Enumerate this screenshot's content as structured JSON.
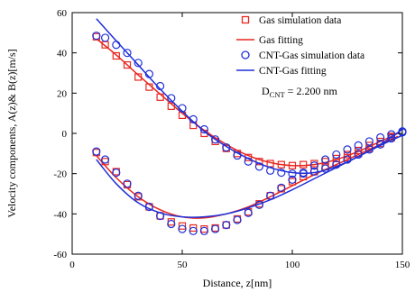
{
  "chart_data": {
    "type": "scatter",
    "xlabel": "Distance, z[nm]",
    "ylabel": "Velocity components, A(z)& B(z)[m/s]",
    "xlim": [
      0,
      150
    ],
    "ylim": [
      -60,
      60
    ],
    "xticks": [
      0,
      50,
      100,
      150
    ],
    "yticks": [
      -60,
      -40,
      -20,
      0,
      20,
      40,
      60
    ],
    "grid": false,
    "legend_position": "top-right",
    "annotation": {
      "prefix": "D",
      "subscript": "CNT",
      "suffix": " = 2.200 nm"
    },
    "colors": {
      "gas": "#e8271f",
      "cnt": "#1f2fd8"
    },
    "series": [
      {
        "name": "Gas simulation data",
        "kind": "markers",
        "marker": "square",
        "color": "#e8271f",
        "x": [
          11,
          15,
          20,
          25,
          30,
          35,
          40,
          45,
          50,
          55,
          60,
          65,
          70,
          75,
          80,
          85,
          90,
          95,
          100,
          105,
          110,
          115,
          120,
          125,
          130,
          135,
          140,
          145
        ],
        "y": [
          48,
          44,
          38.5,
          34,
          28,
          23,
          18,
          13.5,
          9,
          4,
          0,
          -4,
          -7.5,
          -10,
          -12,
          -14,
          -15,
          -15.5,
          -16,
          -15.5,
          -15,
          -14,
          -12.5,
          -10.5,
          -8.5,
          -6,
          -4,
          -1.5
        ]
      },
      {
        "name": "",
        "kind": "markers",
        "marker": "square",
        "color": "#e8271f",
        "x": [
          11,
          15,
          20,
          25,
          30,
          35,
          40,
          45,
          50,
          55,
          60,
          65,
          70,
          75,
          80,
          85,
          90,
          95,
          100,
          105,
          110,
          115,
          120,
          125,
          130,
          135,
          140,
          145
        ],
        "y": [
          -9.5,
          -14,
          -19,
          -25.5,
          -31.5,
          -36.5,
          -41,
          -44,
          -46,
          -47,
          -47.5,
          -47,
          -45.5,
          -42.5,
          -39,
          -35,
          -31,
          -27.5,
          -24,
          -21.5,
          -19,
          -16.5,
          -14.5,
          -12,
          -10,
          -7.5,
          -5,
          -2
        ]
      },
      {
        "name": "Gas fitting",
        "kind": "line",
        "color": "#e8271f",
        "x": [
          11,
          20,
          30,
          40,
          50,
          60,
          70,
          80,
          90,
          100,
          110,
          120,
          130,
          140,
          148
        ],
        "y": [
          47,
          39,
          29,
          19.5,
          10,
          1.5,
          -5.5,
          -11,
          -14.5,
          -16,
          -15.5,
          -13,
          -9,
          -4,
          0
        ]
      },
      {
        "name": "",
        "kind": "line",
        "color": "#e8271f",
        "x": [
          11,
          20,
          30,
          40,
          50,
          60,
          70,
          80,
          90,
          100,
          110,
          120,
          130,
          140,
          148
        ],
        "y": [
          -11,
          -22,
          -31.5,
          -38,
          -41.5,
          -42,
          -40,
          -36.5,
          -31.5,
          -26,
          -20.5,
          -15.5,
          -10.5,
          -5.5,
          -1.5
        ]
      },
      {
        "name": "CNT-Gas simulation data",
        "kind": "markers",
        "marker": "circle",
        "color": "#1f2fd8",
        "x": [
          11,
          15,
          20,
          25,
          30,
          35,
          40,
          45,
          50,
          55,
          60,
          65,
          70,
          75,
          80,
          85,
          90,
          95,
          100,
          105,
          110,
          115,
          120,
          125,
          130,
          135,
          140,
          145,
          150
        ],
        "y": [
          48.5,
          47.5,
          44,
          40,
          35,
          29.5,
          23.5,
          17.5,
          12.5,
          7,
          2,
          -3,
          -7,
          -11,
          -14,
          -16.5,
          -18.5,
          -19.5,
          -20,
          -20,
          -19,
          -17.5,
          -15.5,
          -13,
          -10.5,
          -8,
          -5.5,
          -2.5,
          0.5
        ]
      },
      {
        "name": "",
        "kind": "markers",
        "marker": "circle",
        "color": "#1f2fd8",
        "x": [
          11,
          15,
          20,
          25,
          30,
          35,
          40,
          45,
          50,
          55,
          60,
          65,
          70,
          75,
          80,
          85,
          90,
          95,
          100,
          105,
          110,
          115,
          120,
          125,
          130,
          135,
          140,
          145,
          150
        ],
        "y": [
          -9,
          -13,
          -19.5,
          -25,
          -31,
          -36.5,
          -41,
          -45,
          -47.5,
          -48.5,
          -48.5,
          -47.5,
          -45.5,
          -43,
          -39.5,
          -35.5,
          -31,
          -27,
          -23,
          -19.5,
          -16,
          -13,
          -10.5,
          -8,
          -6,
          -4,
          -2,
          -0.5,
          1
        ]
      },
      {
        "name": "CNT-Gas fitting",
        "kind": "line",
        "color": "#1f2fd8",
        "x": [
          11,
          20,
          30,
          40,
          50,
          60,
          70,
          80,
          90,
          100,
          110,
          120,
          130,
          140,
          150
        ],
        "y": [
          57,
          46,
          34,
          22,
          11,
          1,
          -6.5,
          -12.5,
          -17,
          -19.5,
          -19.5,
          -16.5,
          -11.5,
          -5.5,
          2
        ]
      },
      {
        "name": "",
        "kind": "line",
        "color": "#1f2fd8",
        "x": [
          11,
          20,
          30,
          40,
          50,
          60,
          70,
          80,
          90,
          100,
          110,
          120,
          130,
          140,
          150
        ],
        "y": [
          -13,
          -25,
          -34.5,
          -39.5,
          -41.5,
          -41.5,
          -40,
          -37,
          -33,
          -28,
          -22.5,
          -17,
          -11.5,
          -6,
          -1
        ]
      }
    ]
  }
}
